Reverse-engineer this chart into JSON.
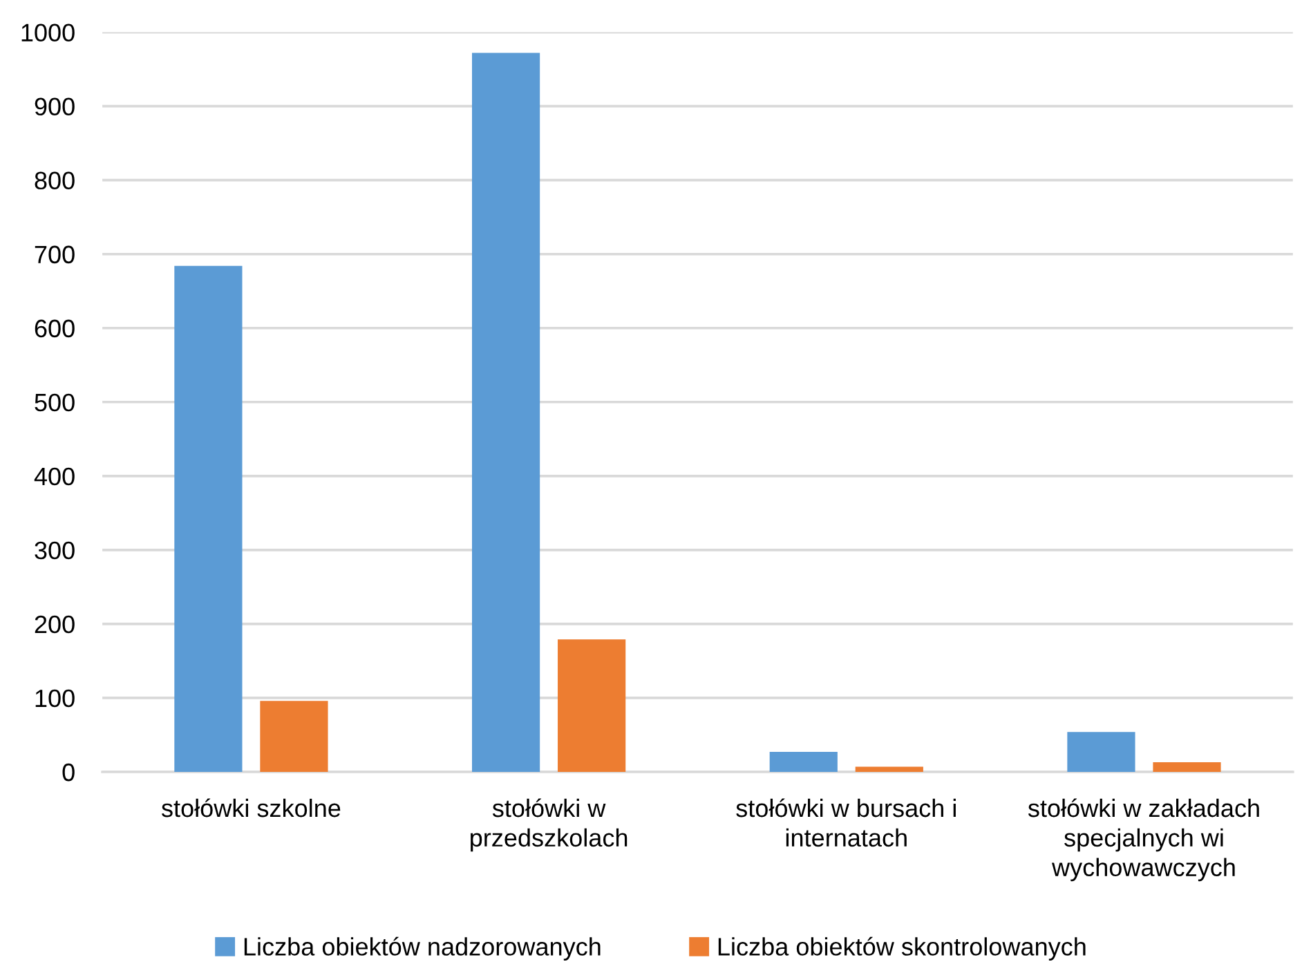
{
  "chart_data": {
    "type": "bar",
    "categories": [
      "stołówki szkolne",
      "stołówki w\nprzedszkolach",
      "stołówki w bursach i\ninternatach",
      "stołówki w zakładach\nspecjalnych wi\nwychowawczych"
    ],
    "series": [
      {
        "name": "Liczba obiektów nadzorowanych",
        "color": "#5b9bd5",
        "values": [
          684,
          972,
          27,
          54
        ]
      },
      {
        "name": "Liczba obiektów skontrolowanych",
        "color": "#ed7d31",
        "values": [
          96,
          179,
          7,
          13
        ]
      }
    ],
    "ylim": [
      0,
      1000
    ],
    "yticks": [
      0,
      100,
      200,
      300,
      400,
      500,
      600,
      700,
      800,
      900,
      1000
    ],
    "grid": "y",
    "legend": "bottom"
  }
}
